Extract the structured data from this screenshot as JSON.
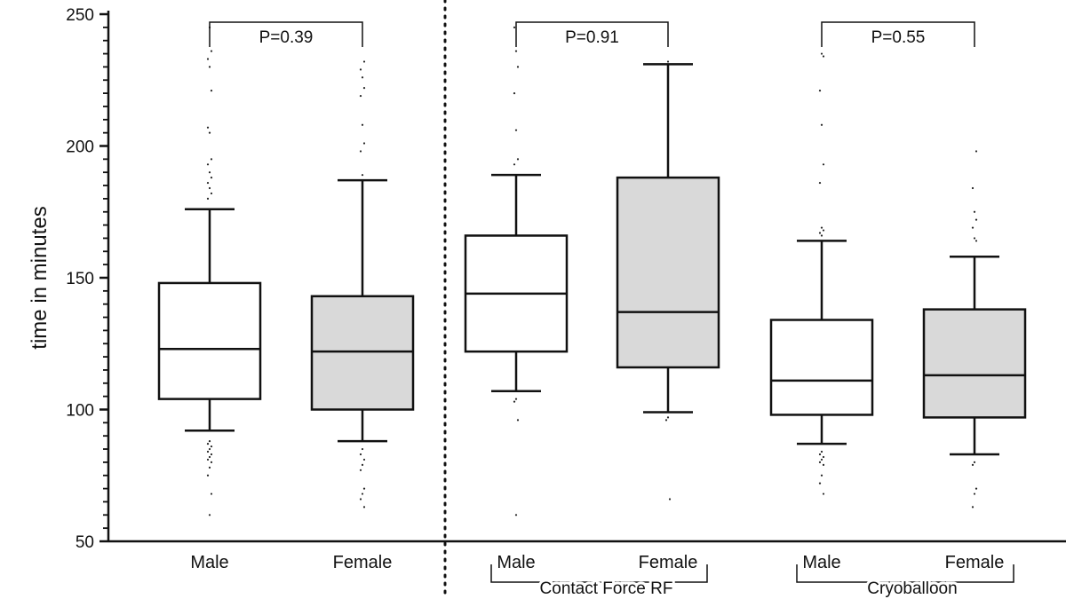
{
  "chart_data": {
    "type": "box",
    "ylabel": "time in minutes",
    "ylim": [
      50,
      250
    ],
    "yticks_major": [
      50,
      100,
      150,
      200,
      250
    ],
    "yticks_minor_step": 5,
    "box_fill": {
      "Male": "#ffffff",
      "Female": "#d9d9d9"
    },
    "boxes": [
      {
        "label": "Male",
        "group": "",
        "whisker_low": 92,
        "q1": 104,
        "median": 123,
        "q3": 148,
        "whisker_high": 176,
        "outliers": [
          88,
          87,
          86,
          85,
          84,
          83,
          82,
          81,
          80,
          78,
          75,
          68,
          60,
          180,
          182,
          184,
          186,
          188,
          190,
          193,
          195,
          205,
          207,
          221,
          230,
          233,
          236,
          245
        ]
      },
      {
        "label": "Female",
        "group": "",
        "whisker_low": 88,
        "q1": 100,
        "median": 122,
        "q3": 143,
        "whisker_high": 187,
        "outliers": [
          85,
          83,
          81,
          79,
          77,
          70,
          68,
          66,
          63,
          189,
          198,
          201,
          208,
          219,
          222,
          226,
          229,
          232
        ]
      },
      {
        "label": "Male",
        "group": "Contact Force RF",
        "whisker_low": 107,
        "q1": 122,
        "median": 144,
        "q3": 166,
        "whisker_high": 189,
        "outliers": [
          104,
          103,
          96,
          60,
          193,
          195,
          206,
          220,
          230,
          236,
          245
        ]
      },
      {
        "label": "Female",
        "group": "Contact Force RF",
        "whisker_low": 99,
        "q1": 116,
        "median": 137,
        "q3": 188,
        "whisker_high": 231,
        "outliers": [
          97,
          96,
          66,
          232
        ]
      },
      {
        "label": "Male",
        "group": "Cryoballoon",
        "whisker_low": 87,
        "q1": 98,
        "median": 111,
        "q3": 134,
        "whisker_high": 164,
        "outliers": [
          84,
          83,
          82,
          81,
          80,
          79,
          75,
          72,
          68,
          166,
          167,
          168,
          169,
          186,
          193,
          208,
          221,
          234,
          235
        ]
      },
      {
        "label": "Female",
        "group": "Cryoballoon",
        "whisker_low": 83,
        "q1": 97,
        "median": 113,
        "q3": 138,
        "whisker_high": 158,
        "outliers": [
          80,
          79,
          70,
          68,
          63,
          164,
          165,
          169,
          172,
          175,
          184,
          198
        ]
      }
    ],
    "comparisons": [
      {
        "boxes": [
          0,
          1
        ],
        "label": "P=0.39"
      },
      {
        "boxes": [
          2,
          3
        ],
        "label": "P=0.91"
      },
      {
        "boxes": [
          4,
          5
        ],
        "label": "P=0.55"
      }
    ],
    "groups": [
      {
        "name": "Contact Force RF",
        "boxes": [
          2,
          3
        ]
      },
      {
        "name": "Cryoballoon",
        "boxes": [
          4,
          5
        ]
      }
    ]
  }
}
